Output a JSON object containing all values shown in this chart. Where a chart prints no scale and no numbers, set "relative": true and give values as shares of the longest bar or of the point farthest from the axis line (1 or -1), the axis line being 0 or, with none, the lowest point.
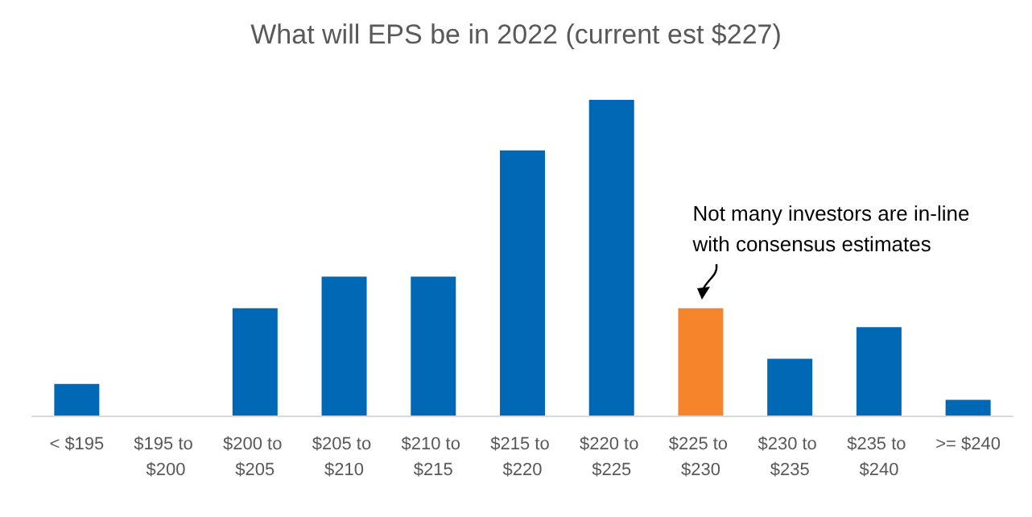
{
  "chart_data": {
    "type": "bar",
    "title": "What will EPS be in 2022 (current est $227)",
    "categories": [
      "< $195",
      "$195 to $200",
      "$200 to $205",
      "$205 to $210",
      "$210 to $215",
      "$215 to $220",
      "$220 to $225",
      "$225 to $230",
      "$230 to $235",
      "$235 to $240",
      ">= $240"
    ],
    "values": [
      0.1,
      0,
      0.34,
      0.44,
      0.44,
      0.84,
      1,
      0.34,
      0.18,
      0.28,
      0.05
    ],
    "colors": [
      "#0068b5",
      "#0068b5",
      "#0068b5",
      "#0068b5",
      "#0068b5",
      "#0068b5",
      "#0068b5",
      "#f5842a",
      "#0068b5",
      "#0068b5",
      "#0068b5"
    ],
    "relative": true,
    "annotations": [
      {
        "text": "Not many investors are in-line with consensus estimates",
        "x": "$225 to $230",
        "y": 0.34
      }
    ],
    "grid": false
  }
}
